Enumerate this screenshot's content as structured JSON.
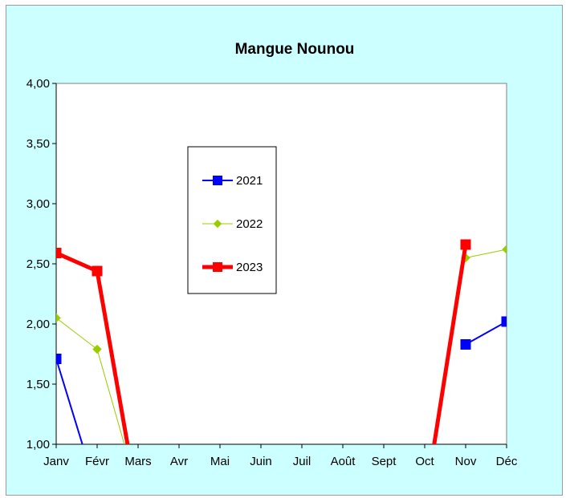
{
  "chart_data": {
    "type": "line",
    "title": "Mangue Nounou",
    "xlabel": "",
    "ylabel": "",
    "categories": [
      "Janv",
      "Févr",
      "Mars",
      "Avr",
      "Mai",
      "Juin",
      "Juil",
      "Août",
      "Sept",
      "Oct",
      "Nov",
      "Déc"
    ],
    "ylim": [
      1.0,
      4.0
    ],
    "yticks": [
      "1,00",
      "1,50",
      "2,00",
      "2,50",
      "3,00",
      "3,50",
      "4,00"
    ],
    "grid": false,
    "legend_position": "upper-left inside plot",
    "series": [
      {
        "name": "2021",
        "color": "#0000ff",
        "marker": "square",
        "values": [
          1.71,
          0.6,
          null,
          null,
          null,
          null,
          null,
          null,
          null,
          null,
          1.83,
          2.02
        ]
      },
      {
        "name": "2022",
        "color": "#99cc00",
        "marker": "diamond",
        "values": [
          2.05,
          1.79,
          0.6,
          null,
          null,
          null,
          null,
          null,
          null,
          null,
          2.55,
          2.62
        ]
      },
      {
        "name": "2023",
        "color": "#ff0000",
        "marker": "square",
        "values": [
          2.59,
          2.44,
          0.5,
          null,
          null,
          null,
          null,
          null,
          null,
          0.5,
          2.66,
          null
        ]
      }
    ]
  }
}
